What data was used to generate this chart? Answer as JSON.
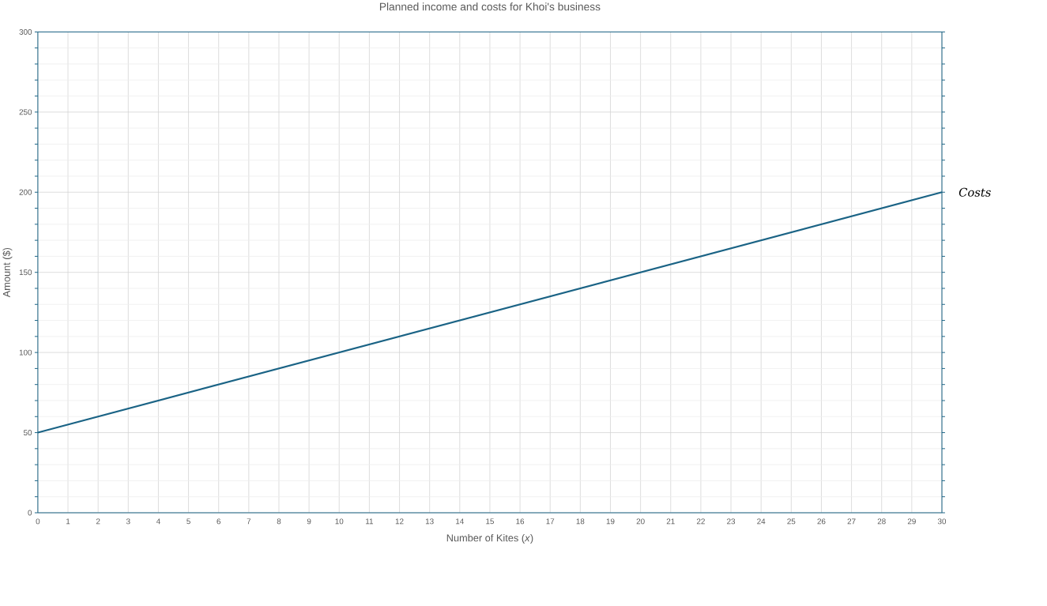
{
  "chart_data": {
    "type": "line",
    "title": "Planned income and costs for Khoi's business",
    "xlabel": "Number of Kites (*x*)",
    "ylabel": "Amount ($)",
    "x": [
      0,
      30
    ],
    "series": [
      {
        "color": "#1a6385",
        "values": [
          50,
          200
        ]
      }
    ],
    "xlim": [
      0,
      30
    ],
    "xticks": [
      0,
      1,
      2,
      3,
      4,
      5,
      6,
      7,
      8,
      9,
      10,
      11,
      12,
      13,
      14,
      15,
      16,
      17,
      18,
      19,
      20,
      21,
      22,
      23,
      24,
      25,
      26,
      27,
      28,
      29,
      30
    ],
    "ylim": [
      0,
      300
    ],
    "yticks": [
      0,
      50,
      100,
      150,
      200,
      250,
      300
    ],
    "grid": true,
    "marker": "none",
    "line_style": "solid",
    "annotations": [
      {
        "text": "Costs",
        "x": 30,
        "y": 200
      }
    ]
  }
}
